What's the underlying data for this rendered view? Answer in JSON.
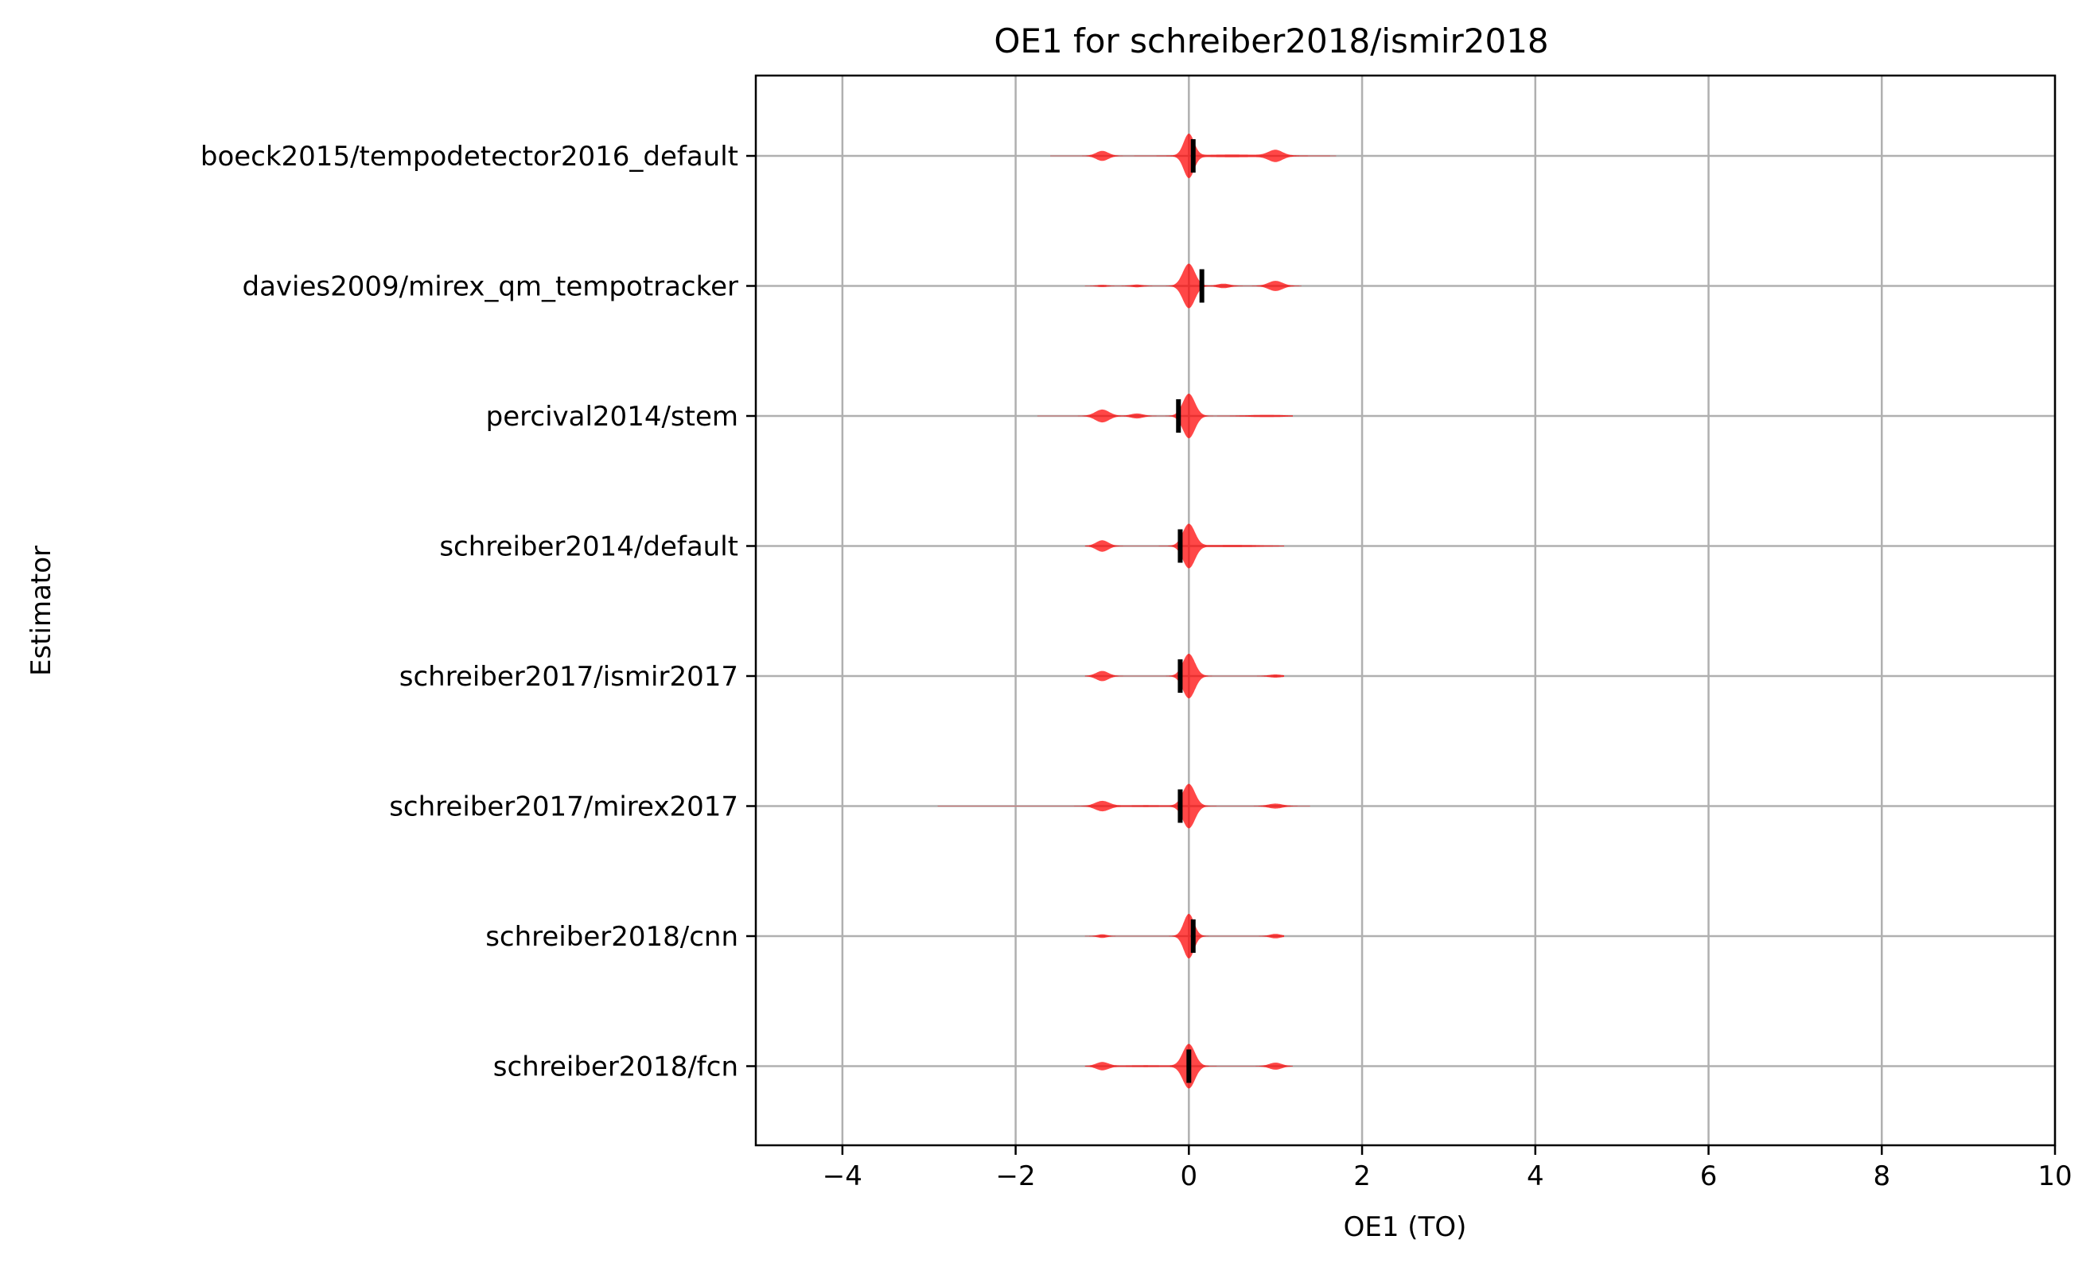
{
  "chart_data": {
    "type": "violin",
    "title": "OE1 for schreiber2018/ismir2018",
    "xlabel": "OE1 (TO)",
    "ylabel": "Estimator",
    "xlim": [
      -5,
      10
    ],
    "xticks": [
      -4,
      -2,
      0,
      2,
      4,
      6,
      8,
      10
    ],
    "xtick_labels": [
      "−4",
      "−2",
      "0",
      "2",
      "4",
      "6",
      "8",
      "10"
    ],
    "grid": true,
    "violin_color": "#ff0000",
    "median_color": "#000000",
    "estimators": [
      {
        "name": "boeck2015/tempodetector2016_default",
        "median": 0.05,
        "range": [
          -1.6,
          1.7
        ],
        "components": [
          {
            "mu": 0,
            "sigma": 0.06,
            "w": 1.0
          },
          {
            "mu": -1.0,
            "sigma": 0.07,
            "w": 0.22
          },
          {
            "mu": 1.0,
            "sigma": 0.08,
            "w": 0.25
          },
          {
            "mu": 0.5,
            "sigma": 0.4,
            "w": 0.05
          }
        ]
      },
      {
        "name": "davies2009/mirex_qm_tempotracker",
        "median": 0.15,
        "range": [
          -1.2,
          1.3
        ],
        "components": [
          {
            "mu": 0,
            "sigma": 0.07,
            "w": 1.0
          },
          {
            "mu": 1.0,
            "sigma": 0.08,
            "w": 0.22
          },
          {
            "mu": 0.4,
            "sigma": 0.07,
            "w": 0.09
          },
          {
            "mu": -0.6,
            "sigma": 0.06,
            "w": 0.05
          },
          {
            "mu": -1.0,
            "sigma": 0.05,
            "w": 0.04
          }
        ]
      },
      {
        "name": "percival2014/stem",
        "median": -0.12,
        "range": [
          -1.75,
          1.2
        ],
        "components": [
          {
            "mu": 0,
            "sigma": 0.07,
            "w": 1.0
          },
          {
            "mu": -1.0,
            "sigma": 0.08,
            "w": 0.28
          },
          {
            "mu": -0.6,
            "sigma": 0.07,
            "w": 0.1
          },
          {
            "mu": 0.9,
            "sigma": 0.2,
            "w": 0.04
          }
        ]
      },
      {
        "name": "schreiber2014/default",
        "median": -0.1,
        "range": [
          -1.2,
          1.1
        ],
        "components": [
          {
            "mu": 0,
            "sigma": 0.07,
            "w": 1.0
          },
          {
            "mu": -1.0,
            "sigma": 0.07,
            "w": 0.25
          },
          {
            "mu": 0.5,
            "sigma": 0.3,
            "w": 0.04
          }
        ]
      },
      {
        "name": "schreiber2017/ismir2017",
        "median": -0.1,
        "range": [
          -1.2,
          1.1
        ],
        "components": [
          {
            "mu": 0,
            "sigma": 0.07,
            "w": 1.0
          },
          {
            "mu": -1.0,
            "sigma": 0.07,
            "w": 0.22
          },
          {
            "mu": 1.0,
            "sigma": 0.07,
            "w": 0.06
          }
        ]
      },
      {
        "name": "schreiber2017/mirex2017",
        "median": -0.1,
        "range": [
          -2.9,
          1.4
        ],
        "components": [
          {
            "mu": 0,
            "sigma": 0.07,
            "w": 1.0
          },
          {
            "mu": -1.0,
            "sigma": 0.08,
            "w": 0.22
          },
          {
            "mu": 1.0,
            "sigma": 0.08,
            "w": 0.1
          },
          {
            "mu": -0.5,
            "sigma": 0.3,
            "w": 0.03
          }
        ]
      },
      {
        "name": "schreiber2018/cnn",
        "median": 0.05,
        "range": [
          -1.2,
          1.1
        ],
        "components": [
          {
            "mu": 0,
            "sigma": 0.06,
            "w": 1.0
          },
          {
            "mu": -1.0,
            "sigma": 0.05,
            "w": 0.07
          },
          {
            "mu": 1.0,
            "sigma": 0.06,
            "w": 0.09
          }
        ]
      },
      {
        "name": "schreiber2018/fcn",
        "median": 0.0,
        "range": [
          -1.2,
          1.2
        ],
        "components": [
          {
            "mu": 0,
            "sigma": 0.07,
            "w": 1.0
          },
          {
            "mu": -1.0,
            "sigma": 0.07,
            "w": 0.17
          },
          {
            "mu": 1.0,
            "sigma": 0.07,
            "w": 0.15
          },
          {
            "mu": -0.5,
            "sigma": 0.3,
            "w": 0.03
          }
        ]
      }
    ]
  }
}
